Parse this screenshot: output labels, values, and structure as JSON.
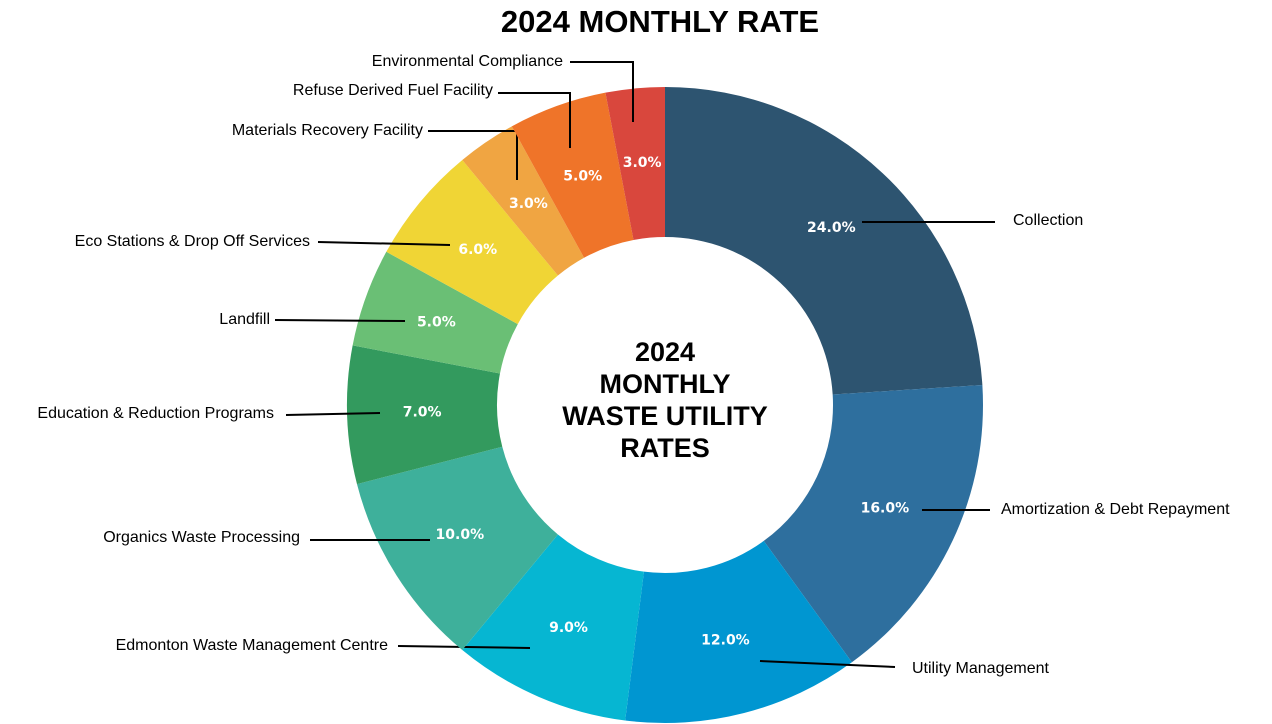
{
  "chart_data": {
    "type": "donut",
    "title": "2024 MONTHLY RATE",
    "center_text": [
      "2024",
      "MONTHLY",
      "WASTE UTILITY",
      "RATES"
    ],
    "categories": [
      "Collection",
      "Amortization & Debt Repayment",
      "Utility Management",
      "Edmonton Waste Management Centre",
      "Organics Waste Processing",
      "Education & Reduction Programs",
      "Landfill",
      "Eco Stations & Drop Off Services",
      "Materials Recovery Facility",
      "Refuse Derived Fuel Facility",
      "Environmental Compliance"
    ],
    "values": [
      24,
      16,
      12,
      9,
      10,
      7,
      5,
      6,
      3,
      5,
      3
    ],
    "value_labels": [
      "24.0%",
      "16.0%",
      "12.0%",
      "9.0%",
      "10.0%",
      "7.0%",
      "5.0%",
      "6.0%",
      "3.0%",
      "5.0%",
      "3.0%"
    ],
    "colors": [
      "#2d5470",
      "#2e6f9e",
      "#0096d1",
      "#06b6d2",
      "#3eb09b",
      "#339a5e",
      "#6abf75",
      "#f0d535",
      "#f0a542",
      "#ef7429",
      "#d9473d"
    ]
  }
}
